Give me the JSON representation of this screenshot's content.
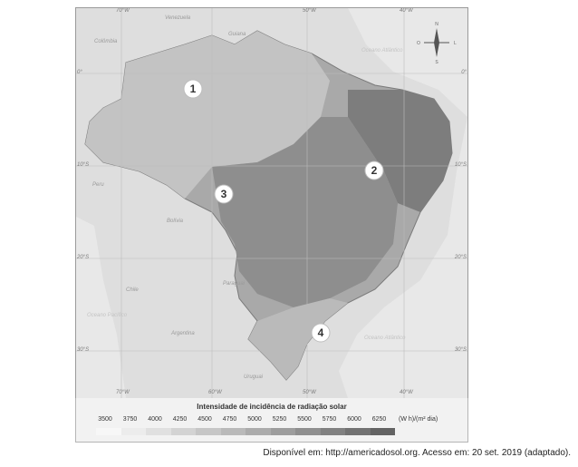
{
  "map": {
    "coordinates": {
      "top": [
        "70°W",
        "50°W",
        "40°W"
      ],
      "bottom": [
        "70°W",
        "60°W",
        "50°W",
        "40°W"
      ],
      "left": [
        "0°",
        "10°S",
        "20°S",
        "30°S"
      ],
      "right": [
        "0°",
        "10°S",
        "20°S",
        "30°S"
      ]
    },
    "countries": [
      "Colômbia",
      "Venezuela",
      "Guiana",
      "Peru",
      "Bolívia",
      "Chile",
      "Paraguai",
      "Argentina",
      "Uruguai"
    ],
    "oceans": [
      "Oceano Atlântico",
      "Oceano Pacífico",
      "Oceano Atlântico"
    ],
    "compass": {
      "n": "N",
      "s": "S",
      "e": "L",
      "w": "O"
    },
    "regions": [
      {
        "label": "1",
        "region": "north"
      },
      {
        "label": "2",
        "region": "northeast"
      },
      {
        "label": "3",
        "region": "center-west"
      },
      {
        "label": "4",
        "region": "south"
      }
    ]
  },
  "legend": {
    "title": "Intensidade de incidência de radiação solar",
    "values": [
      "3500",
      "3750",
      "4000",
      "4250",
      "4500",
      "4750",
      "5000",
      "5250",
      "5500",
      "5750",
      "6000",
      "6250"
    ],
    "unit": "(W h)/(m² dia)",
    "colors": [
      "#f7f7f7",
      "#ececec",
      "#e0e0e0",
      "#d3d3d3",
      "#c6c6c6",
      "#b9b9b9",
      "#ababab",
      "#9d9d9d",
      "#8f8f8f",
      "#818181",
      "#727272",
      "#636363"
    ]
  },
  "source": "Disponível em: http://americadosol.org. Acesso em: 20 set. 2019 (adaptado)."
}
